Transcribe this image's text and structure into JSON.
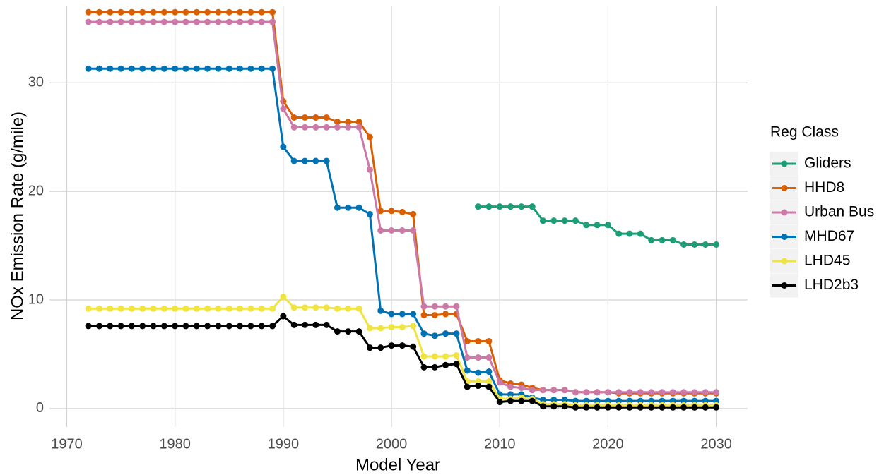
{
  "chart_data": {
    "type": "line",
    "xlabel": "Model Year",
    "ylabel": "NOx Emission Rate (g/mile)",
    "legend_title": "Reg Class",
    "legend": "right",
    "x": [
      1972,
      1973,
      1974,
      1975,
      1976,
      1977,
      1978,
      1979,
      1980,
      1981,
      1982,
      1983,
      1984,
      1985,
      1986,
      1987,
      1988,
      1989,
      1990,
      1991,
      1992,
      1993,
      1994,
      1995,
      1996,
      1997,
      1998,
      1999,
      2000,
      2001,
      2002,
      2003,
      2004,
      2005,
      2006,
      2007,
      2008,
      2009,
      2010,
      2011,
      2012,
      2013,
      2014,
      2015,
      2016,
      2017,
      2018,
      2019,
      2020,
      2021,
      2022,
      2023,
      2024,
      2025,
      2026,
      2027,
      2028,
      2029,
      2030
    ],
    "xlim": [
      1968.4,
      2032.9
    ],
    "xticks": [
      1970,
      1980,
      1990,
      2000,
      2010,
      2020,
      2030
    ],
    "ylim": [
      -1.7,
      37.1
    ],
    "yticks": [
      0,
      10,
      20,
      30
    ],
    "grid": true,
    "series": [
      {
        "name": "Gliders",
        "color": "#1b9e77",
        "values": [
          null,
          null,
          null,
          null,
          null,
          null,
          null,
          null,
          null,
          null,
          null,
          null,
          null,
          null,
          null,
          null,
          null,
          null,
          null,
          null,
          null,
          null,
          null,
          null,
          null,
          null,
          null,
          null,
          null,
          null,
          null,
          null,
          null,
          null,
          null,
          null,
          18.6,
          18.6,
          18.6,
          18.6,
          18.6,
          18.6,
          17.3,
          17.3,
          17.3,
          17.3,
          16.9,
          16.9,
          16.9,
          16.1,
          16.1,
          16.1,
          15.5,
          15.5,
          15.5,
          15.1,
          15.1,
          15.1,
          15.1
        ]
      },
      {
        "name": "HHD8",
        "color": "#d95f02",
        "values": [
          36.5,
          36.5,
          36.5,
          36.5,
          36.5,
          36.5,
          36.5,
          36.5,
          36.5,
          36.5,
          36.5,
          36.5,
          36.5,
          36.5,
          36.5,
          36.5,
          36.5,
          36.5,
          28.3,
          26.8,
          26.8,
          26.8,
          26.8,
          26.4,
          26.4,
          26.4,
          25.0,
          18.2,
          18.2,
          18.1,
          17.9,
          8.6,
          8.6,
          8.7,
          8.7,
          6.2,
          6.2,
          6.2,
          2.6,
          2.3,
          2.2,
          1.9,
          1.7,
          1.7,
          1.7,
          1.5,
          1.5,
          1.5,
          1.5,
          1.4,
          1.4,
          1.4,
          1.4,
          1.4,
          1.4,
          1.4,
          1.4,
          1.4,
          1.4
        ]
      },
      {
        "name": "Urban Bus",
        "color": "#cc79a7",
        "values": [
          35.6,
          35.6,
          35.6,
          35.6,
          35.6,
          35.6,
          35.6,
          35.6,
          35.6,
          35.6,
          35.6,
          35.6,
          35.6,
          35.6,
          35.6,
          35.6,
          35.6,
          35.6,
          27.6,
          25.9,
          25.9,
          25.9,
          25.9,
          25.9,
          25.9,
          25.9,
          22.0,
          16.4,
          16.4,
          16.4,
          16.4,
          9.4,
          9.4,
          9.4,
          9.4,
          4.7,
          4.7,
          4.7,
          2.4,
          2.0,
          1.9,
          1.7,
          1.7,
          1.7,
          1.7,
          1.5,
          1.5,
          1.5,
          1.5,
          1.5,
          1.5,
          1.5,
          1.5,
          1.5,
          1.5,
          1.5,
          1.5,
          1.5,
          1.5
        ]
      },
      {
        "name": "MHD67",
        "color": "#0072b2",
        "values": [
          31.3,
          31.3,
          31.3,
          31.3,
          31.3,
          31.3,
          31.3,
          31.3,
          31.3,
          31.3,
          31.3,
          31.3,
          31.3,
          31.3,
          31.3,
          31.3,
          31.3,
          31.3,
          24.1,
          22.8,
          22.8,
          22.8,
          22.8,
          18.5,
          18.5,
          18.5,
          17.9,
          9.0,
          8.7,
          8.7,
          8.7,
          6.9,
          6.7,
          6.9,
          6.9,
          3.5,
          3.3,
          3.4,
          1.3,
          1.3,
          1.3,
          1.0,
          0.8,
          0.8,
          0.8,
          0.7,
          0.7,
          0.7,
          0.7,
          0.7,
          0.7,
          0.7,
          0.7,
          0.7,
          0.7,
          0.7,
          0.7,
          0.7,
          0.7
        ]
      },
      {
        "name": "LHD45",
        "color": "#f0e442",
        "values": [
          9.2,
          9.2,
          9.2,
          9.2,
          9.2,
          9.2,
          9.2,
          9.2,
          9.2,
          9.2,
          9.2,
          9.2,
          9.2,
          9.2,
          9.2,
          9.2,
          9.2,
          9.2,
          10.3,
          9.3,
          9.3,
          9.3,
          9.3,
          9.2,
          9.2,
          9.2,
          7.4,
          7.4,
          7.5,
          7.5,
          7.6,
          4.8,
          4.8,
          4.8,
          4.9,
          2.5,
          2.5,
          2.5,
          0.9,
          0.9,
          1.0,
          0.9,
          0.4,
          0.4,
          0.4,
          0.3,
          0.3,
          0.3,
          0.3,
          0.3,
          0.3,
          0.3,
          0.3,
          0.3,
          0.3,
          0.3,
          0.3,
          0.3,
          0.3
        ]
      },
      {
        "name": "LHD2b3",
        "color": "#000000",
        "values": [
          7.6,
          7.6,
          7.6,
          7.6,
          7.6,
          7.6,
          7.6,
          7.6,
          7.6,
          7.6,
          7.6,
          7.6,
          7.6,
          7.6,
          7.6,
          7.6,
          7.6,
          7.6,
          8.5,
          7.7,
          7.7,
          7.7,
          7.7,
          7.1,
          7.1,
          7.1,
          5.6,
          5.6,
          5.8,
          5.8,
          5.7,
          3.8,
          3.8,
          4.0,
          4.1,
          2.0,
          2.1,
          2.0,
          0.6,
          0.7,
          0.7,
          0.7,
          0.2,
          0.2,
          0.2,
          0.1,
          0.1,
          0.1,
          0.1,
          0.1,
          0.1,
          0.1,
          0.1,
          0.1,
          0.1,
          0.1,
          0.1,
          0.1,
          0.1
        ]
      }
    ]
  }
}
